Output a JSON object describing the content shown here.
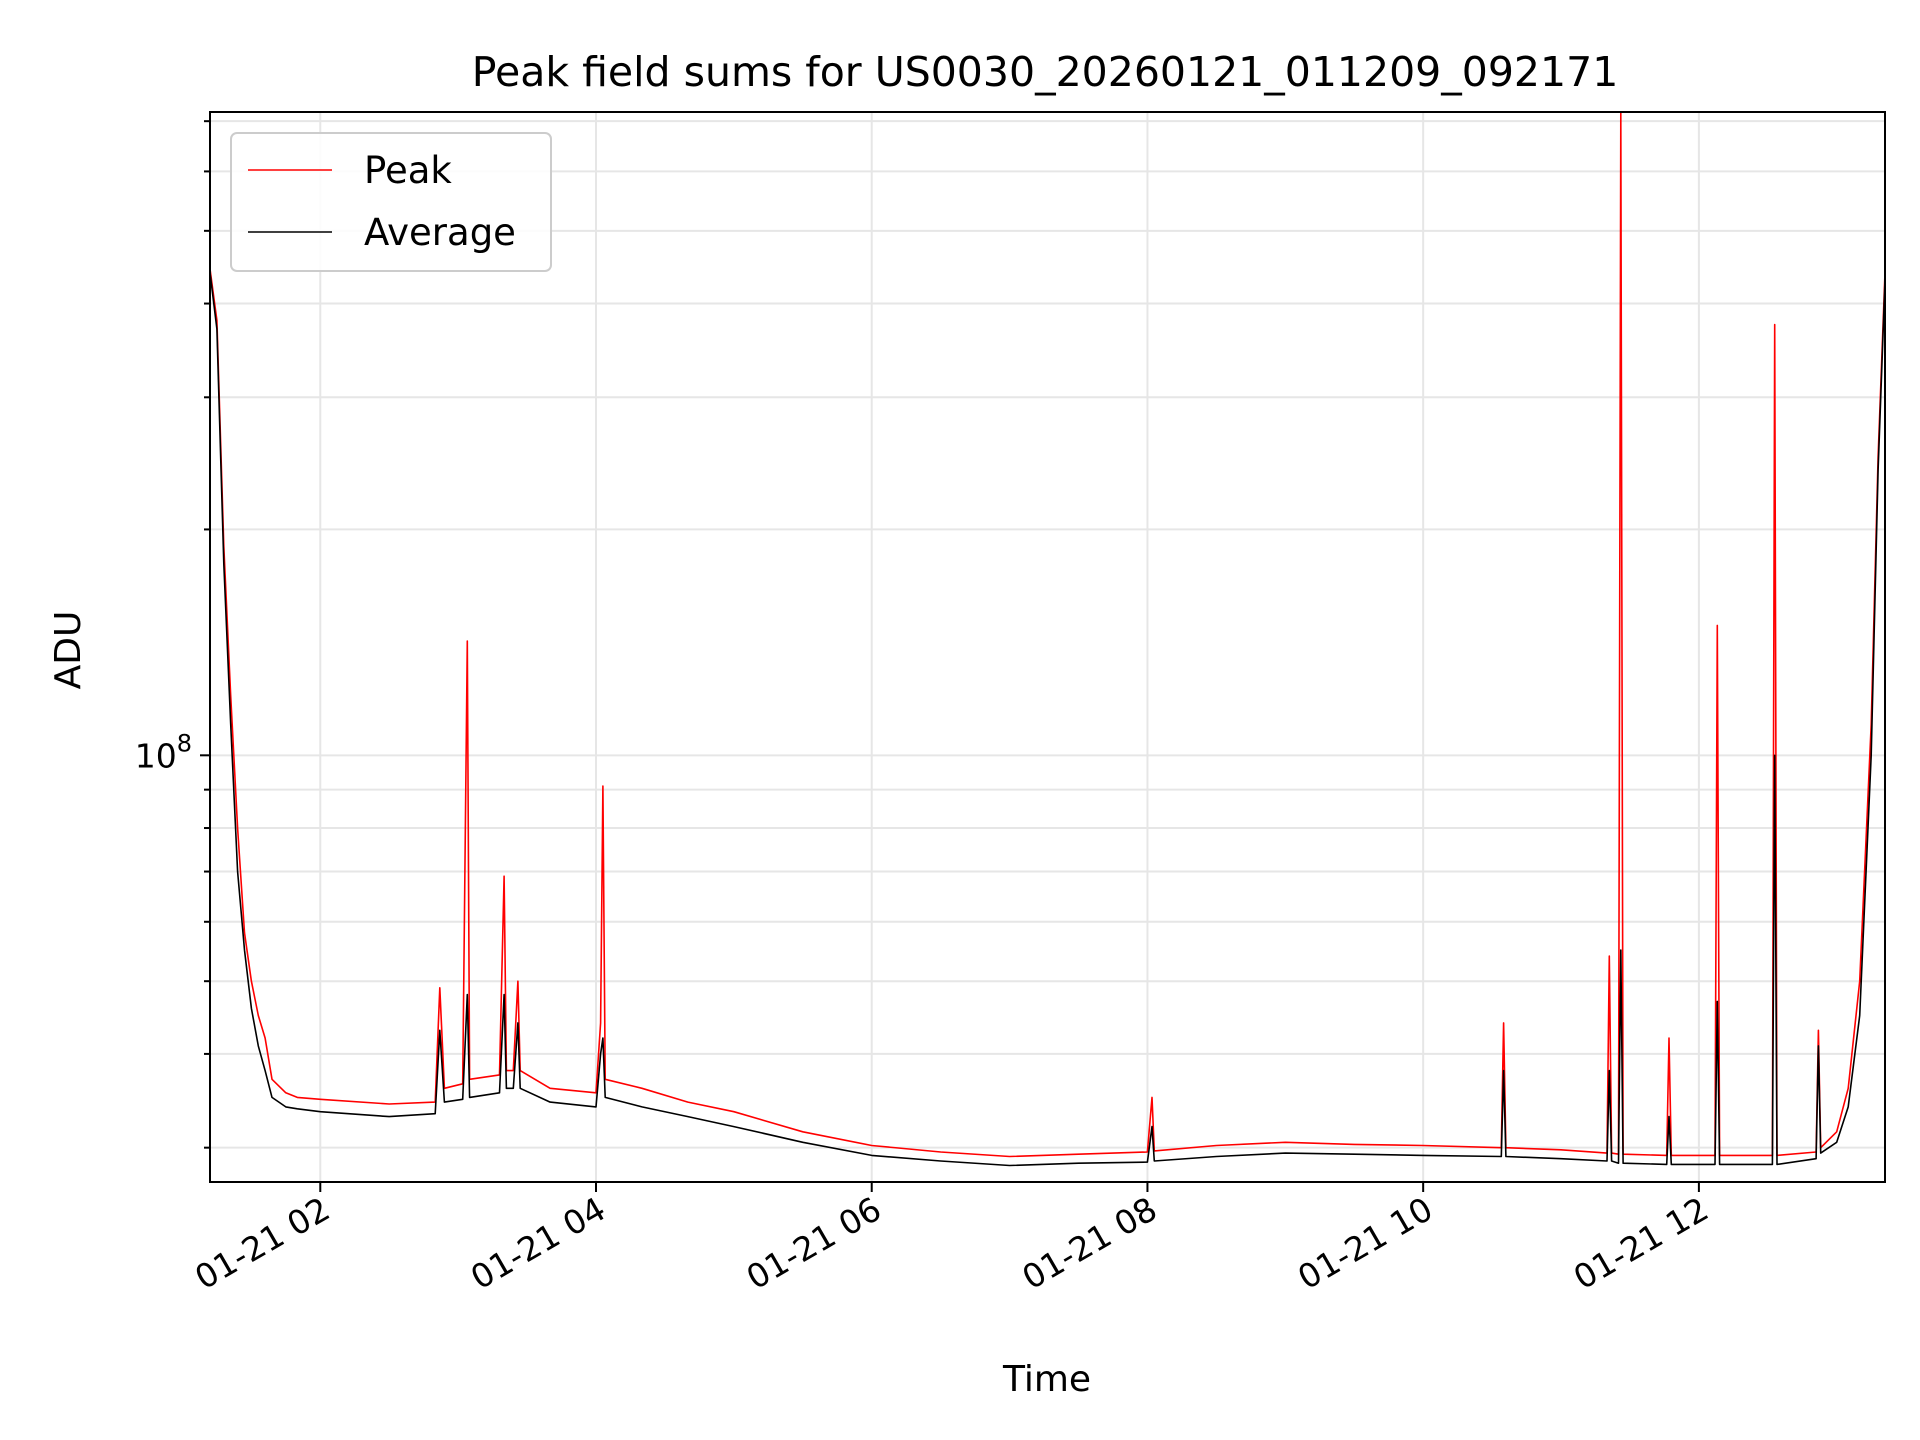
{
  "chart_data": {
    "type": "line",
    "title": "Peak field sums for US0030_20260121_011209_092171",
    "xlabel": "Time",
    "ylabel": "ADU",
    "y_scale": "log",
    "x_range": [
      "2026-01-21 01:12",
      "2026-01-21 13:21"
    ],
    "ylim": [
      27000000,
      720000000
    ],
    "x_ticks": [
      {
        "t": "2026-01-21 02:00",
        "label": "01-21 02"
      },
      {
        "t": "2026-01-21 04:00",
        "label": "01-21 04"
      },
      {
        "t": "2026-01-21 06:00",
        "label": "01-21 06"
      },
      {
        "t": "2026-01-21 08:00",
        "label": "01-21 08"
      },
      {
        "t": "2026-01-21 10:00",
        "label": "01-21 10"
      },
      {
        "t": "2026-01-21 12:00",
        "label": "01-21 12"
      }
    ],
    "y_major_tick": {
      "value": 100000000,
      "label_base": "10",
      "label_exp": "8"
    },
    "y_minor_ticks": [
      30000000,
      40000000,
      50000000,
      60000000,
      70000000,
      80000000,
      90000000,
      200000000,
      300000000,
      400000000,
      500000000,
      600000000,
      700000000
    ],
    "grid": true,
    "legend_position": "top-left",
    "series": [
      {
        "name": "Peak",
        "color": "#ff0000",
        "points": [
          [
            "2026-01-21 01:12",
            445000000
          ],
          [
            "2026-01-21 01:15",
            380000000
          ],
          [
            "2026-01-21 01:18",
            190000000
          ],
          [
            "2026-01-21 01:21",
            120000000
          ],
          [
            "2026-01-21 01:24",
            80000000
          ],
          [
            "2026-01-21 01:27",
            58000000
          ],
          [
            "2026-01-21 01:30",
            50000000
          ],
          [
            "2026-01-21 01:33",
            45000000
          ],
          [
            "2026-01-21 01:36",
            42000000
          ],
          [
            "2026-01-21 01:39",
            37000000
          ],
          [
            "2026-01-21 01:45",
            35500000
          ],
          [
            "2026-01-21 01:50",
            35000000
          ],
          [
            "2026-01-21 02:00",
            34800000
          ],
          [
            "2026-01-21 02:30",
            34300000
          ],
          [
            "2026-01-21 02:50",
            34500000
          ],
          [
            "2026-01-21 02:52",
            49000000
          ],
          [
            "2026-01-21 02:54",
            36000000
          ],
          [
            "2026-01-21 03:02",
            36500000
          ],
          [
            "2026-01-21 03:04",
            142000000
          ],
          [
            "2026-01-21 03:05",
            37000000
          ],
          [
            "2026-01-21 03:18",
            37500000
          ],
          [
            "2026-01-21 03:20",
            69000000
          ],
          [
            "2026-01-21 03:21",
            38000000
          ],
          [
            "2026-01-21 03:24",
            38000000
          ],
          [
            "2026-01-21 03:26",
            50000000
          ],
          [
            "2026-01-21 03:27",
            38000000
          ],
          [
            "2026-01-21 03:40",
            36000000
          ],
          [
            "2026-01-21 04:00",
            35500000
          ],
          [
            "2026-01-21 04:02",
            44000000
          ],
          [
            "2026-01-21 04:03",
            91000000
          ],
          [
            "2026-01-21 04:04",
            37000000
          ],
          [
            "2026-01-21 04:20",
            36000000
          ],
          [
            "2026-01-21 04:40",
            34500000
          ],
          [
            "2026-01-21 05:00",
            33500000
          ],
          [
            "2026-01-21 05:30",
            31500000
          ],
          [
            "2026-01-21 06:00",
            30200000
          ],
          [
            "2026-01-21 06:30",
            29600000
          ],
          [
            "2026-01-21 07:00",
            29200000
          ],
          [
            "2026-01-21 07:30",
            29400000
          ],
          [
            "2026-01-21 08:00",
            29600000
          ],
          [
            "2026-01-21 08:02",
            35000000
          ],
          [
            "2026-01-21 08:03",
            29700000
          ],
          [
            "2026-01-21 08:30",
            30200000
          ],
          [
            "2026-01-21 09:00",
            30500000
          ],
          [
            "2026-01-21 09:30",
            30300000
          ],
          [
            "2026-01-21 10:00",
            30200000
          ],
          [
            "2026-01-21 10:34",
            30000000
          ],
          [
            "2026-01-21 10:35",
            44000000
          ],
          [
            "2026-01-21 10:36",
            30000000
          ],
          [
            "2026-01-21 11:00",
            29800000
          ],
          [
            "2026-01-21 11:20",
            29500000
          ],
          [
            "2026-01-21 11:21",
            54000000
          ],
          [
            "2026-01-21 11:22",
            29500000
          ],
          [
            "2026-01-21 11:25",
            29400000
          ],
          [
            "2026-01-21 11:26",
            720000000
          ],
          [
            "2026-01-21 11:27",
            29400000
          ],
          [
            "2026-01-21 11:46",
            29300000
          ],
          [
            "2026-01-21 11:47",
            42000000
          ],
          [
            "2026-01-21 11:48",
            29300000
          ],
          [
            "2026-01-21 12:07",
            29300000
          ],
          [
            "2026-01-21 12:08",
            149000000
          ],
          [
            "2026-01-21 12:09",
            29300000
          ],
          [
            "2026-01-21 12:32",
            29300000
          ],
          [
            "2026-01-21 12:33",
            375000000
          ],
          [
            "2026-01-21 12:34",
            29300000
          ],
          [
            "2026-01-21 12:51",
            29600000
          ],
          [
            "2026-01-21 12:52",
            43000000
          ],
          [
            "2026-01-21 12:53",
            30000000
          ],
          [
            "2026-01-21 13:00",
            31500000
          ],
          [
            "2026-01-21 13:05",
            36000000
          ],
          [
            "2026-01-21 13:10",
            50000000
          ],
          [
            "2026-01-21 13:15",
            110000000
          ],
          [
            "2026-01-21 13:18",
            250000000
          ],
          [
            "2026-01-21 13:21",
            440000000
          ]
        ]
      },
      {
        "name": "Average",
        "color": "#000000",
        "points": [
          [
            "2026-01-21 01:12",
            440000000
          ],
          [
            "2026-01-21 01:15",
            370000000
          ],
          [
            "2026-01-21 01:18",
            180000000
          ],
          [
            "2026-01-21 01:21",
            110000000
          ],
          [
            "2026-01-21 01:24",
            70000000
          ],
          [
            "2026-01-21 01:27",
            55000000
          ],
          [
            "2026-01-21 01:30",
            46000000
          ],
          [
            "2026-01-21 01:33",
            41000000
          ],
          [
            "2026-01-21 01:36",
            38000000
          ],
          [
            "2026-01-21 01:39",
            35000000
          ],
          [
            "2026-01-21 01:45",
            34000000
          ],
          [
            "2026-01-21 01:50",
            33800000
          ],
          [
            "2026-01-21 02:00",
            33500000
          ],
          [
            "2026-01-21 02:30",
            33000000
          ],
          [
            "2026-01-21 02:50",
            33300000
          ],
          [
            "2026-01-21 02:52",
            43000000
          ],
          [
            "2026-01-21 02:54",
            34500000
          ],
          [
            "2026-01-21 03:02",
            34800000
          ],
          [
            "2026-01-21 03:04",
            48000000
          ],
          [
            "2026-01-21 03:05",
            35000000
          ],
          [
            "2026-01-21 03:18",
            35500000
          ],
          [
            "2026-01-21 03:20",
            48000000
          ],
          [
            "2026-01-21 03:21",
            36000000
          ],
          [
            "2026-01-21 03:24",
            36000000
          ],
          [
            "2026-01-21 03:26",
            44000000
          ],
          [
            "2026-01-21 03:27",
            36000000
          ],
          [
            "2026-01-21 03:40",
            34500000
          ],
          [
            "2026-01-21 04:00",
            34000000
          ],
          [
            "2026-01-21 04:02",
            40000000
          ],
          [
            "2026-01-21 04:03",
            42000000
          ],
          [
            "2026-01-21 04:04",
            35000000
          ],
          [
            "2026-01-21 04:20",
            34000000
          ],
          [
            "2026-01-21 04:40",
            33000000
          ],
          [
            "2026-01-21 05:00",
            32000000
          ],
          [
            "2026-01-21 05:30",
            30500000
          ],
          [
            "2026-01-21 06:00",
            29300000
          ],
          [
            "2026-01-21 06:30",
            28800000
          ],
          [
            "2026-01-21 07:00",
            28400000
          ],
          [
            "2026-01-21 07:30",
            28600000
          ],
          [
            "2026-01-21 08:00",
            28700000
          ],
          [
            "2026-01-21 08:02",
            32000000
          ],
          [
            "2026-01-21 08:03",
            28800000
          ],
          [
            "2026-01-21 08:30",
            29200000
          ],
          [
            "2026-01-21 09:00",
            29500000
          ],
          [
            "2026-01-21 09:30",
            29400000
          ],
          [
            "2026-01-21 10:00",
            29300000
          ],
          [
            "2026-01-21 10:34",
            29200000
          ],
          [
            "2026-01-21 10:35",
            38000000
          ],
          [
            "2026-01-21 10:36",
            29200000
          ],
          [
            "2026-01-21 11:00",
            29000000
          ],
          [
            "2026-01-21 11:20",
            28800000
          ],
          [
            "2026-01-21 11:21",
            38000000
          ],
          [
            "2026-01-21 11:22",
            28800000
          ],
          [
            "2026-01-21 11:25",
            28600000
          ],
          [
            "2026-01-21 11:26",
            55000000
          ],
          [
            "2026-01-21 11:27",
            28600000
          ],
          [
            "2026-01-21 11:46",
            28500000
          ],
          [
            "2026-01-21 11:47",
            33000000
          ],
          [
            "2026-01-21 11:48",
            28500000
          ],
          [
            "2026-01-21 12:07",
            28500000
          ],
          [
            "2026-01-21 12:08",
            47000000
          ],
          [
            "2026-01-21 12:09",
            28500000
          ],
          [
            "2026-01-21 12:32",
            28500000
          ],
          [
            "2026-01-21 12:33",
            100000000
          ],
          [
            "2026-01-21 12:34",
            28500000
          ],
          [
            "2026-01-21 12:51",
            29000000
          ],
          [
            "2026-01-21 12:52",
            41000000
          ],
          [
            "2026-01-21 12:53",
            29500000
          ],
          [
            "2026-01-21 13:00",
            30500000
          ],
          [
            "2026-01-21 13:05",
            34000000
          ],
          [
            "2026-01-21 13:10",
            45000000
          ],
          [
            "2026-01-21 13:15",
            100000000
          ],
          [
            "2026-01-21 13:18",
            240000000
          ],
          [
            "2026-01-21 13:21",
            430000000
          ]
        ]
      }
    ]
  }
}
